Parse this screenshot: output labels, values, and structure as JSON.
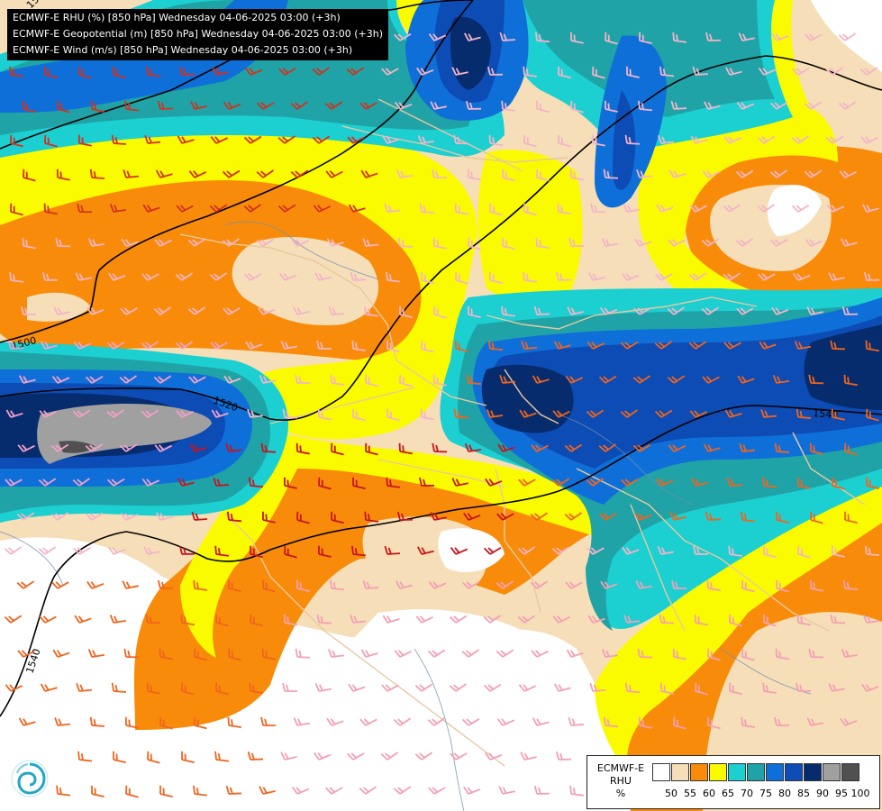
{
  "title_lines": [
    "ECMWF-E RHU (%) [850 hPa] Wednesday 04-06-2025 03:00 (+3h)",
    "ECMWF-E Geopotential (m) [850 hPa] Wednesday 04-06-2025 03:00 (+3h)",
    "ECMWF-E Wind (m/s) [850 hPa] Wednesday 04-06-2025 03:00 (+3h)"
  ],
  "legend": {
    "model": "ECMWF-E",
    "variable": "RHU",
    "unit": "%",
    "ticks": [
      "50",
      "55",
      "60",
      "65",
      "70",
      "75",
      "80",
      "85",
      "90",
      "95",
      "100"
    ],
    "colors": [
      "#ffffff",
      "#f6deb8",
      "#f88c0a",
      "#fbfb00",
      "#1ccfd1",
      "#1fa3a6",
      "#0f6fd9",
      "#0d4cb4",
      "#072c6e",
      "#a0a0a0",
      "#505050"
    ]
  },
  "contour_labels": [
    "1500",
    "1520",
    "1540",
    "1540",
    "1500"
  ],
  "icons": {
    "logo": "ecmwf-swirl-logo"
  }
}
